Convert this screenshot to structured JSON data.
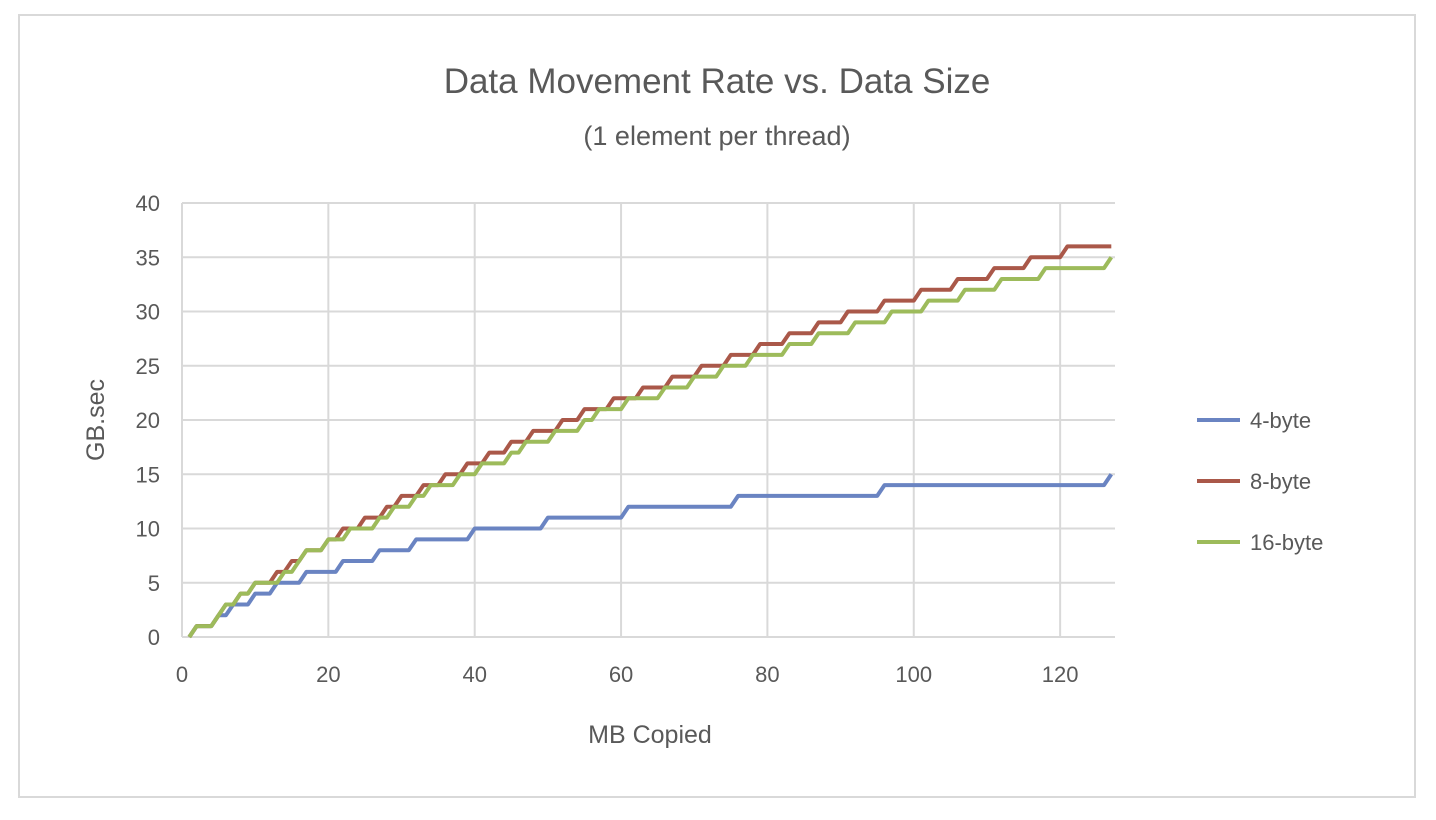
{
  "chart_data": {
    "type": "line",
    "title": "Data Movement Rate vs. Data Size",
    "subtitle": "(1 element per thread)",
    "xlabel": "MB Copied",
    "ylabel": "GB.sec",
    "xlim": [
      0,
      127.5
    ],
    "ylim": [
      0,
      40
    ],
    "xticks": [
      "0",
      "20",
      "40",
      "60",
      "80",
      "100",
      "120"
    ],
    "yticks": [
      "0",
      "5",
      "10",
      "15",
      "20",
      "25",
      "30",
      "35",
      "40"
    ],
    "grid": true,
    "legend_position": "right",
    "x": {
      "start": 1,
      "end": 127,
      "step": 1
    },
    "series": [
      {
        "name": "4-byte",
        "color": "#6a84c2",
        "values": [
          0,
          1,
          1,
          1,
          2,
          2,
          3,
          3,
          3,
          4,
          4,
          4,
          5,
          5,
          5,
          5,
          6,
          6,
          6,
          6,
          6,
          7,
          7,
          7,
          7,
          7,
          8,
          8,
          8,
          8,
          8,
          9,
          9,
          9,
          9,
          9,
          9,
          9,
          9,
          10,
          10,
          10,
          10,
          10,
          10,
          10,
          10,
          10,
          10,
          11,
          11,
          11,
          11,
          11,
          11,
          11,
          11,
          11,
          11,
          11,
          12,
          12,
          12,
          12,
          12,
          12,
          12,
          12,
          12,
          12,
          12,
          12,
          12,
          12,
          12,
          13,
          13,
          13,
          13,
          13,
          13,
          13,
          13,
          13,
          13,
          13,
          13,
          13,
          13,
          13,
          13,
          13,
          13,
          13,
          13,
          14,
          14,
          14,
          14,
          14,
          14,
          14,
          14,
          14,
          14,
          14,
          14,
          14,
          14,
          14,
          14,
          14,
          14,
          14,
          14,
          14,
          14,
          14,
          14,
          14,
          14,
          14,
          14,
          14,
          14,
          14,
          15
        ]
      },
      {
        "name": "8-byte",
        "color": "#aa5849",
        "values": [
          0,
          1,
          1,
          1,
          2,
          3,
          3,
          4,
          4,
          5,
          5,
          5,
          6,
          6,
          7,
          7,
          8,
          8,
          8,
          9,
          9,
          10,
          10,
          10,
          11,
          11,
          11,
          12,
          12,
          13,
          13,
          13,
          14,
          14,
          14,
          15,
          15,
          15,
          16,
          16,
          16,
          17,
          17,
          17,
          18,
          18,
          18,
          19,
          19,
          19,
          19,
          20,
          20,
          20,
          21,
          21,
          21,
          21,
          22,
          22,
          22,
          22,
          23,
          23,
          23,
          23,
          24,
          24,
          24,
          24,
          25,
          25,
          25,
          25,
          26,
          26,
          26,
          26,
          27,
          27,
          27,
          27,
          28,
          28,
          28,
          28,
          29,
          29,
          29,
          29,
          30,
          30,
          30,
          30,
          30,
          31,
          31,
          31,
          31,
          31,
          32,
          32,
          32,
          32,
          32,
          33,
          33,
          33,
          33,
          33,
          34,
          34,
          34,
          34,
          34,
          35,
          35,
          35,
          35,
          35,
          36,
          36,
          36,
          36,
          36,
          36,
          36
        ]
      },
      {
        "name": "16-byte",
        "color": "#9dbb5b",
        "values": [
          0,
          1,
          1,
          1,
          2,
          3,
          3,
          4,
          4,
          5,
          5,
          5,
          5,
          6,
          6,
          7,
          8,
          8,
          8,
          9,
          9,
          9,
          10,
          10,
          10,
          10,
          11,
          11,
          12,
          12,
          12,
          13,
          13,
          14,
          14,
          14,
          14,
          15,
          15,
          15,
          16,
          16,
          16,
          16,
          17,
          17,
          18,
          18,
          18,
          18,
          19,
          19,
          19,
          19,
          20,
          20,
          21,
          21,
          21,
          21,
          22,
          22,
          22,
          22,
          22,
          23,
          23,
          23,
          23,
          24,
          24,
          24,
          24,
          25,
          25,
          25,
          25,
          26,
          26,
          26,
          26,
          26,
          27,
          27,
          27,
          27,
          28,
          28,
          28,
          28,
          28,
          29,
          29,
          29,
          29,
          29,
          30,
          30,
          30,
          30,
          30,
          31,
          31,
          31,
          31,
          31,
          32,
          32,
          32,
          32,
          32,
          33,
          33,
          33,
          33,
          33,
          33,
          34,
          34,
          34,
          34,
          34,
          34,
          34,
          34,
          34,
          35
        ]
      }
    ]
  }
}
